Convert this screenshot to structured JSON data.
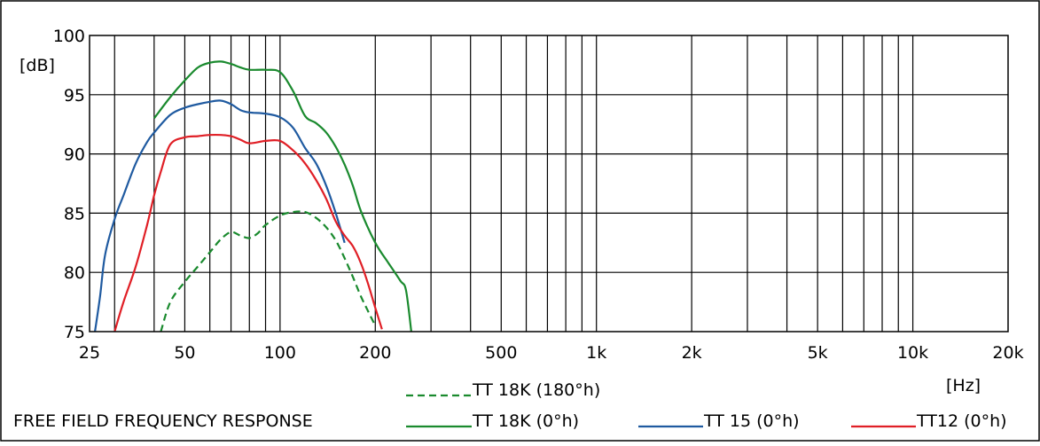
{
  "chart_data": {
    "type": "line",
    "title": "",
    "footer_label": "FREE FIELD FREQUENCY RESPONSE",
    "ylabel": "[dB]",
    "xlabel": "[Hz]",
    "xscale": "log",
    "xlim": [
      25,
      20000
    ],
    "ylim": [
      75,
      100
    ],
    "grid": true,
    "x_tick_values": [
      25,
      50,
      100,
      200,
      500,
      1000,
      2000,
      5000,
      10000,
      20000
    ],
    "x_tick_labels": [
      "25",
      "50",
      "100",
      "200",
      "500",
      "1k",
      "2k",
      "5k",
      "10k",
      "20k"
    ],
    "y_tick_values": [
      75,
      80,
      85,
      90,
      95,
      100
    ],
    "y_tick_labels": [
      "75",
      "80",
      "85",
      "90",
      "95",
      "100"
    ],
    "legend_position": "bottom",
    "series": [
      {
        "name": "TT 18K (180°h)",
        "color": "#1a8a2e",
        "dash": "dashed",
        "x": [
          42,
          45,
          50,
          55,
          60,
          65,
          70,
          75,
          80,
          85,
          90,
          100,
          110,
          120,
          130,
          140,
          150,
          160,
          170,
          180,
          190,
          200
        ],
        "y": [
          75,
          77.5,
          79.2,
          80.5,
          81.7,
          82.8,
          83.4,
          83.1,
          82.9,
          83.3,
          84,
          84.8,
          85.1,
          85.1,
          84.6,
          83.8,
          82.7,
          81.2,
          79.6,
          78,
          76.7,
          75.5
        ]
      },
      {
        "name": "TT 18K (0°h)",
        "color": "#1a8a2e",
        "dash": "solid",
        "x": [
          40,
          45,
          50,
          55,
          60,
          65,
          70,
          75,
          80,
          90,
          100,
          110,
          120,
          130,
          140,
          150,
          160,
          170,
          180,
          200,
          220,
          240,
          250,
          260
        ],
        "y": [
          93,
          94.8,
          96.2,
          97.3,
          97.7,
          97.8,
          97.6,
          97.3,
          97.1,
          97.1,
          96.9,
          95.3,
          93.2,
          92.6,
          91.8,
          90.6,
          89.1,
          87.3,
          85.2,
          82.5,
          80.8,
          79.3,
          78.5,
          75
        ]
      },
      {
        "name": "TT 15 (0°h)",
        "color": "#1f5aa0",
        "dash": "solid",
        "x": [
          26,
          27,
          28,
          30,
          32,
          35,
          38,
          40,
          45,
          50,
          55,
          60,
          65,
          70,
          75,
          80,
          90,
          100,
          110,
          120,
          130,
          140,
          150,
          160
        ],
        "y": [
          75,
          78,
          81.5,
          84.5,
          86.5,
          89.2,
          91,
          91.8,
          93.3,
          93.9,
          94.2,
          94.4,
          94.5,
          94.2,
          93.7,
          93.5,
          93.4,
          93.1,
          92.2,
          90.5,
          89.2,
          87.3,
          85,
          82.5
        ]
      },
      {
        "name": "TT12 (0°h)",
        "color": "#e01f26",
        "dash": "solid",
        "x": [
          30,
          32,
          35,
          38,
          40,
          42,
          45,
          50,
          55,
          60,
          65,
          70,
          75,
          80,
          90,
          100,
          110,
          120,
          130,
          140,
          150,
          160,
          170,
          180,
          190,
          200,
          210
        ],
        "y": [
          75,
          77.5,
          80.5,
          84,
          86.5,
          88.5,
          90.8,
          91.4,
          91.5,
          91.6,
          91.6,
          91.5,
          91.2,
          90.9,
          91.1,
          91.1,
          90.3,
          89.2,
          87.8,
          86.2,
          84.3,
          83.1,
          82.2,
          80.8,
          79,
          77,
          75.2
        ]
      }
    ]
  }
}
